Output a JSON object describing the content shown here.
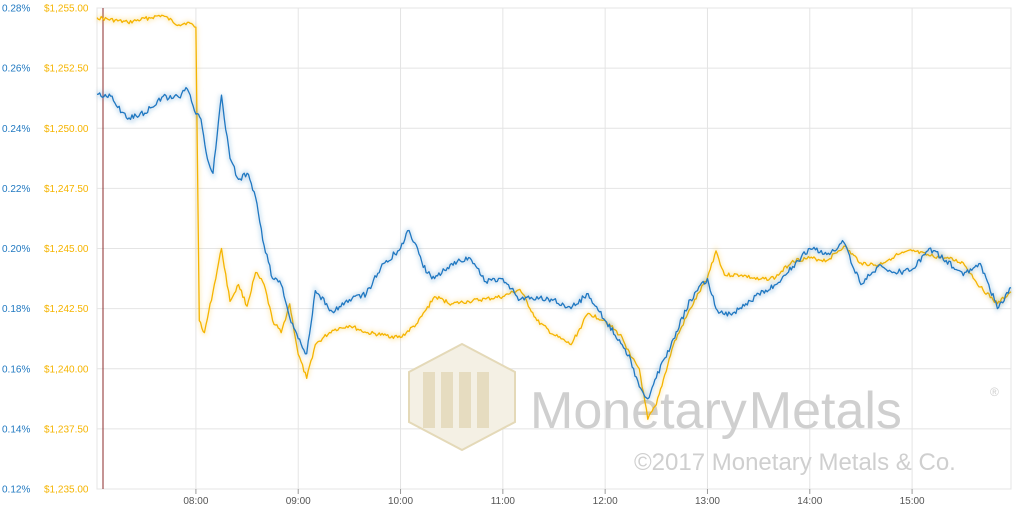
{
  "chart_data": {
    "type": "line",
    "title": "",
    "xlabel": "",
    "ylabel": "",
    "colors": {
      "price": "#f5b400",
      "basis": "#1f78c1",
      "grid": "#e4e4e4",
      "marker": "#8b2a2a"
    },
    "x_ticks": [
      "08:00",
      "09:00",
      "10:00",
      "11:00",
      "12:00",
      "13:00",
      "14:00",
      "15:00"
    ],
    "x_range": [
      "07:02",
      "15:58"
    ],
    "y_right_ticks": [
      "0.28%",
      "0.26%",
      "0.24%",
      "0.22%",
      "0.20%",
      "0.18%",
      "0.16%",
      "0.14%",
      "0.12%"
    ],
    "y_left_ticks": [
      "$1,255.00",
      "$1,252.50",
      "$1,250.00",
      "$1,247.50",
      "$1,245.00",
      "$1,242.50",
      "$1,240.00",
      "$1,237.50",
      "$1,235.00"
    ],
    "y_price_range": [
      1235,
      1255
    ],
    "y_basis_range": [
      0.12,
      0.28
    ],
    "grid": true,
    "series": [
      {
        "key": "price",
        "x": [
          "07:02",
          "07:20",
          "07:40",
          "07:50",
          "07:55",
          "08:00",
          "08:02",
          "08:05",
          "08:10",
          "08:15",
          "08:20",
          "08:25",
          "08:30",
          "08:35",
          "08:40",
          "08:45",
          "08:50",
          "08:55",
          "09:00",
          "09:05",
          "09:10",
          "09:20",
          "09:30",
          "09:40",
          "09:50",
          "10:00",
          "10:10",
          "10:20",
          "10:30",
          "10:40",
          "10:50",
          "11:00",
          "11:10",
          "11:20",
          "11:30",
          "11:40",
          "11:50",
          "12:00",
          "12:10",
          "12:15",
          "12:20",
          "12:25",
          "12:30",
          "12:40",
          "12:50",
          "13:00",
          "13:05",
          "13:10",
          "13:20",
          "13:30",
          "13:40",
          "13:50",
          "14:00",
          "14:10",
          "14:20",
          "14:30",
          "14:40",
          "14:50",
          "15:00",
          "15:10",
          "15:20",
          "15:30",
          "15:40",
          "15:50",
          "15:58"
        ],
        "values": [
          1254.6,
          1254.4,
          1254.7,
          1254.3,
          1254.4,
          1254.2,
          1242.0,
          1241.5,
          1243.2,
          1245.0,
          1242.8,
          1243.5,
          1242.6,
          1244.0,
          1243.5,
          1242.0,
          1241.5,
          1242.7,
          1240.6,
          1239.6,
          1241.0,
          1241.6,
          1241.8,
          1241.5,
          1241.4,
          1241.3,
          1241.9,
          1243.0,
          1242.7,
          1242.8,
          1242.9,
          1243.0,
          1243.3,
          1242.0,
          1241.4,
          1241.0,
          1242.3,
          1242.0,
          1241.3,
          1240.5,
          1240.0,
          1237.9,
          1238.5,
          1241.0,
          1242.5,
          1243.8,
          1244.9,
          1243.9,
          1243.9,
          1243.7,
          1243.8,
          1244.5,
          1244.6,
          1244.5,
          1245.1,
          1244.4,
          1244.3,
          1244.7,
          1244.9,
          1244.7,
          1244.6,
          1244.4,
          1243.4,
          1242.7,
          1243.2
        ]
      },
      {
        "key": "basis",
        "x": [
          "07:02",
          "07:10",
          "07:20",
          "07:30",
          "07:40",
          "07:50",
          "07:55",
          "08:00",
          "08:03",
          "08:06",
          "08:10",
          "08:15",
          "08:20",
          "08:25",
          "08:30",
          "08:35",
          "08:40",
          "08:45",
          "08:50",
          "08:55",
          "09:00",
          "09:05",
          "09:10",
          "09:20",
          "09:30",
          "09:40",
          "09:50",
          "10:00",
          "10:05",
          "10:10",
          "10:15",
          "10:20",
          "10:30",
          "10:40",
          "10:50",
          "11:00",
          "11:10",
          "11:20",
          "11:30",
          "11:40",
          "11:50",
          "12:00",
          "12:10",
          "12:15",
          "12:20",
          "12:25",
          "12:30",
          "12:40",
          "12:50",
          "13:00",
          "13:05",
          "13:10",
          "13:20",
          "13:30",
          "13:40",
          "13:50",
          "14:00",
          "14:10",
          "14:20",
          "14:30",
          "14:40",
          "14:50",
          "15:00",
          "15:10",
          "15:20",
          "15:30",
          "15:40",
          "15:45",
          "15:50",
          "15:58"
        ],
        "values": [
          0.2513,
          0.2507,
          0.243,
          0.245,
          0.2503,
          0.2503,
          0.253,
          0.2447,
          0.243,
          0.232,
          0.225,
          0.251,
          0.23,
          0.223,
          0.225,
          0.217,
          0.201,
          0.19,
          0.188,
          0.177,
          0.17,
          0.165,
          0.186,
          0.179,
          0.183,
          0.185,
          0.195,
          0.2,
          0.206,
          0.2,
          0.192,
          0.19,
          0.195,
          0.197,
          0.189,
          0.19,
          0.183,
          0.184,
          0.183,
          0.18,
          0.185,
          0.176,
          0.168,
          0.163,
          0.154,
          0.15,
          0.157,
          0.17,
          0.183,
          0.19,
          0.18,
          0.178,
          0.18,
          0.185,
          0.188,
          0.194,
          0.2,
          0.198,
          0.202,
          0.188,
          0.194,
          0.192,
          0.193,
          0.2,
          0.196,
          0.191,
          0.195,
          0.188,
          0.18,
          0.187
        ]
      }
    ]
  },
  "watermark": {
    "word1": "Monetary",
    "word2": "Metals",
    "registered": "®",
    "copyright": "©2017 Monetary Metals & Co."
  }
}
